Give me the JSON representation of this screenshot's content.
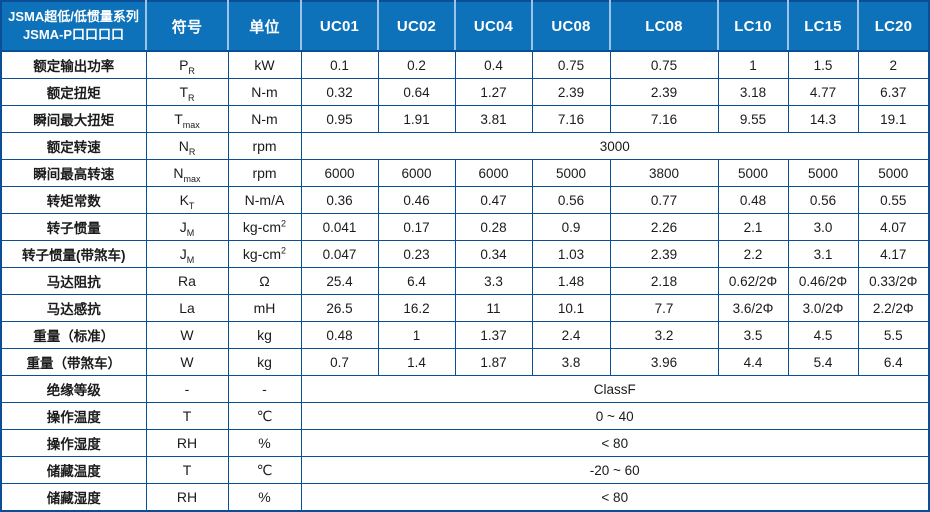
{
  "table": {
    "title_line1": "JSMA超低/低惯量系列",
    "title_line2": "JSMA-P口口口口",
    "symbol_header": "符号",
    "unit_header": "单位",
    "models": [
      "UC01",
      "UC02",
      "UC04",
      "UC08",
      "LC08",
      "LC10",
      "LC15",
      "LC20"
    ],
    "colors": {
      "header_bg": "#0d72b9",
      "border": "#0a4e96",
      "header_divider": "#9dc3e6",
      "header_text": "#ffffff",
      "cell_text": "#1b1b1b"
    },
    "rows": [
      {
        "label": "额定输出功率",
        "symbol": "P",
        "symbol_sub": "R",
        "unit": "kW",
        "values": [
          "0.1",
          "0.2",
          "0.4",
          "0.75",
          "0.75",
          "1",
          "1.5",
          "2"
        ]
      },
      {
        "label": "额定扭矩",
        "symbol": "T",
        "symbol_sub": "R",
        "unit": "N-m",
        "values": [
          "0.32",
          "0.64",
          "1.27",
          "2.39",
          "2.39",
          "3.18",
          "4.77",
          "6.37"
        ]
      },
      {
        "label": "瞬间最大扭矩",
        "symbol": "T",
        "symbol_sub": "max",
        "unit": "N-m",
        "values": [
          "0.95",
          "1.91",
          "3.81",
          "7.16",
          "7.16",
          "9.55",
          "14.3",
          "19.1"
        ]
      },
      {
        "label": "额定转速",
        "symbol": "N",
        "symbol_sub": "R",
        "unit": "rpm",
        "span_value": "3000"
      },
      {
        "label": "瞬间最高转速",
        "symbol": "N",
        "symbol_sub": "max",
        "unit": "rpm",
        "values": [
          "6000",
          "6000",
          "6000",
          "5000",
          "3800",
          "5000",
          "5000",
          "5000"
        ]
      },
      {
        "label": "转矩常数",
        "symbol": "K",
        "symbol_sub": "T",
        "unit": "N-m/A",
        "values": [
          "0.36",
          "0.46",
          "0.47",
          "0.56",
          "0.77",
          "0.48",
          "0.56",
          "0.55"
        ]
      },
      {
        "label": "转子惯量",
        "symbol": "J",
        "symbol_sub": "M",
        "unit": "kg-cm",
        "unit_sup": "2",
        "values": [
          "0.041",
          "0.17",
          "0.28",
          "0.9",
          "2.26",
          "2.1",
          "3.0",
          "4.07"
        ]
      },
      {
        "label": "转子惯量(带煞车)",
        "symbol": "J",
        "symbol_sub": "M",
        "unit": "kg-cm",
        "unit_sup": "2",
        "values": [
          "0.047",
          "0.23",
          "0.34",
          "1.03",
          "2.39",
          "2.2",
          "3.1",
          "4.17"
        ]
      },
      {
        "label": "马达阻抗",
        "symbol": "Ra",
        "unit": "Ω",
        "values": [
          "25.4",
          "6.4",
          "3.3",
          "1.48",
          "2.18",
          "0.62/2Φ",
          "0.46/2Φ",
          "0.33/2Φ"
        ]
      },
      {
        "label": "马达感抗",
        "symbol": "La",
        "unit": "mH",
        "values": [
          "26.5",
          "16.2",
          "11",
          "10.1",
          "7.7",
          "3.6/2Φ",
          "3.0/2Φ",
          "2.2/2Φ"
        ]
      },
      {
        "label": "重量（标准）",
        "symbol": "W",
        "unit": "kg",
        "values": [
          "0.48",
          "1",
          "1.37",
          "2.4",
          "3.2",
          "3.5",
          "4.5",
          "5.5"
        ]
      },
      {
        "label": "重量（带煞车）",
        "symbol": "W",
        "unit": "kg",
        "values": [
          "0.7",
          "1.4",
          "1.87",
          "3.8",
          "3.96",
          "4.4",
          "5.4",
          "6.4"
        ]
      },
      {
        "label": "绝缘等级",
        "symbol": "-",
        "unit": "-",
        "span_value": "ClassF"
      },
      {
        "label": "操作温度",
        "symbol": "T",
        "unit": "℃",
        "span_value": "0 ~ 40"
      },
      {
        "label": "操作湿度",
        "symbol": "RH",
        "unit": "%",
        "span_value": "< 80"
      },
      {
        "label": "储藏温度",
        "symbol": "T",
        "unit": "℃",
        "span_value": "-20 ~ 60"
      },
      {
        "label": "储藏湿度",
        "symbol": "RH",
        "unit": "%",
        "span_value": "< 80"
      }
    ]
  }
}
